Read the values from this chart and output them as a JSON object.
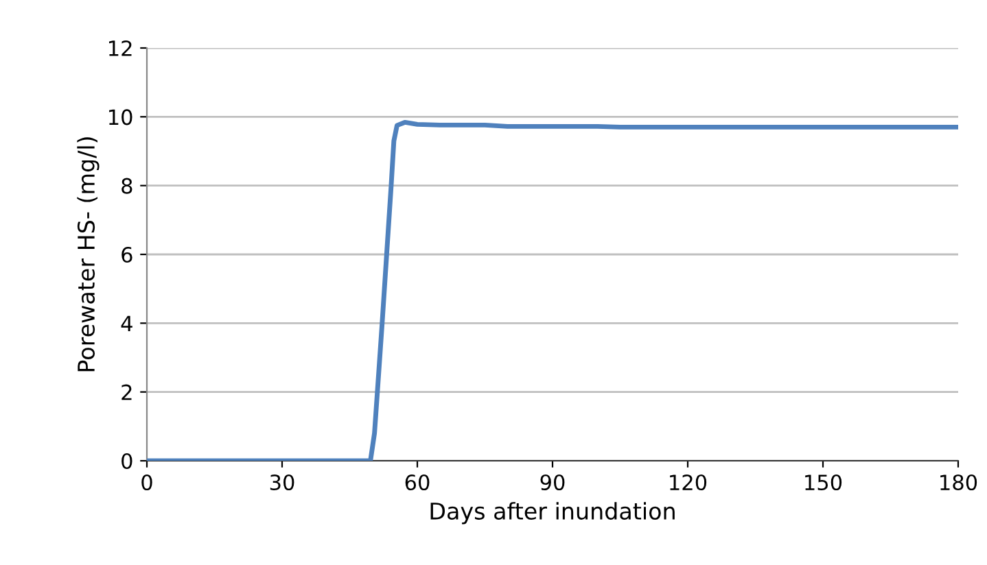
{
  "chart_data": {
    "type": "line",
    "xlabel": "Days after inundation",
    "ylabel": "Porewater HS- (mg/l)",
    "series": [
      {
        "color": "#4f81bd",
        "x": [
          0,
          30,
          45,
          49.6,
          50.5,
          51.3,
          52.2,
          53.2,
          54.2,
          54.8,
          55.5,
          57.3,
          60,
          65,
          75,
          80,
          90,
          100,
          105,
          120,
          150,
          180
        ],
        "values": [
          0,
          0,
          0,
          0,
          0.8,
          2.3,
          4.0,
          6.0,
          8.0,
          9.3,
          9.75,
          9.84,
          9.78,
          9.76,
          9.76,
          9.72,
          9.72,
          9.72,
          9.7,
          9.7,
          9.7,
          9.7
        ]
      }
    ],
    "xlim": [
      0,
      180
    ],
    "xticks": [
      0,
      30,
      60,
      90,
      120,
      150,
      180
    ],
    "ylim": [
      0,
      12
    ],
    "yticks": [
      0,
      2,
      4,
      6,
      8,
      10,
      12
    ],
    "grid": "y",
    "marker": "none",
    "line_style": "solid",
    "legend": false
  }
}
